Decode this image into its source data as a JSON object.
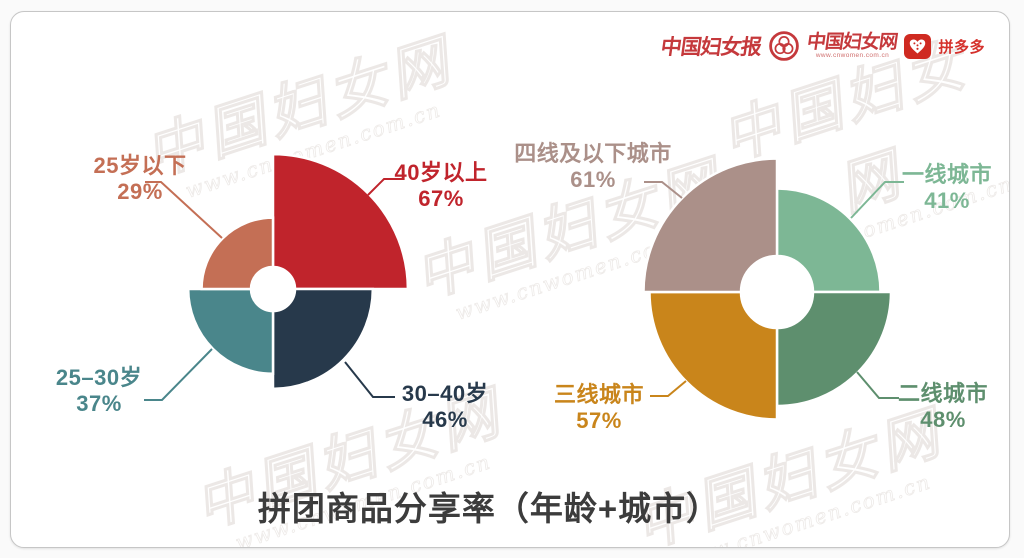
{
  "header": {
    "logos": [
      {
        "name": "中国妇女报"
      },
      {
        "name": "中国妇女网",
        "url": "www.cnwomen.com.cn"
      },
      {
        "name": "拼多多"
      }
    ]
  },
  "watermark": {
    "text": "中国妇女网",
    "subtext": "www.cnwomen.com.cn"
  },
  "title": "拼团商品分享率（年龄+城市）",
  "chart_data": [
    {
      "type": "pie",
      "variant": "nightingale-rose-donut",
      "topic": "年龄",
      "unit": "%",
      "label_format": "callout: label + percent",
      "legend_position": "outside-callouts",
      "segments": [
        {
          "label": "40岁以上",
          "value": 67,
          "color": "#c0242c",
          "quadrant": "NE"
        },
        {
          "label": "30–40岁",
          "value": 46,
          "color": "#27394b",
          "quadrant": "SE"
        },
        {
          "label": "25–30岁",
          "value": 37,
          "color": "#4a868b",
          "quadrant": "SW"
        },
        {
          "label": "25岁以下",
          "value": 29,
          "color": "#c46f55",
          "quadrant": "NW"
        }
      ]
    },
    {
      "type": "pie",
      "variant": "nightingale-rose-donut",
      "topic": "城市",
      "unit": "%",
      "label_format": "callout: label + percent",
      "legend_position": "outside-callouts",
      "segments": [
        {
          "label": "一线城市",
          "value": 41,
          "color": "#7db795",
          "quadrant": "NE"
        },
        {
          "label": "二线城市",
          "value": 48,
          "color": "#5e8f6e",
          "quadrant": "SE"
        },
        {
          "label": "三线城市",
          "value": 57,
          "color": "#c9851b",
          "quadrant": "SW"
        },
        {
          "label": "四线及以下城市",
          "value": 61,
          "color": "#ab9089",
          "quadrant": "NW"
        }
      ]
    }
  ]
}
